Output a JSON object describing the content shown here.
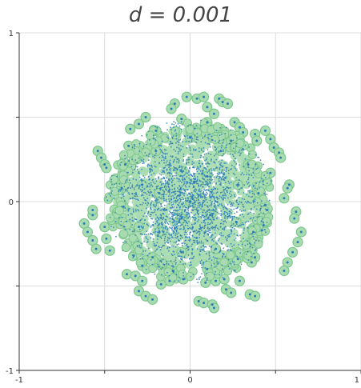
{
  "chart_data": {
    "type": "scatter",
    "title": "d = 0.001",
    "xlabel": "",
    "ylabel": "",
    "xlim": [
      -1,
      1
    ],
    "ylim": [
      -1,
      1
    ],
    "x_ticks": [
      -1,
      -0.5,
      0,
      0.5,
      1
    ],
    "y_ticks": [
      -1,
      -0.5,
      0,
      0.5,
      1
    ],
    "x_tick_labels": [
      "-1",
      "",
      "0",
      "",
      "1"
    ],
    "y_tick_labels": [
      "-1",
      "",
      "0",
      "",
      "1"
    ],
    "grid": true,
    "legend": "none",
    "point_color": "#2b7bba",
    "halo_color": "#a8dcb0",
    "halo_edge_color": "#7cc68e",
    "cloud": {
      "center": [
        0,
        0
      ],
      "radius": 0.5,
      "density": "highest near center"
    },
    "series": [
      {
        "values": [
          [
            -0.54,
            0.3
          ],
          [
            -0.52,
            0.26
          ],
          [
            -0.5,
            0.22
          ],
          [
            -0.49,
            0.2
          ],
          [
            -0.57,
            -0.08
          ],
          [
            -0.57,
            -0.05
          ],
          [
            -0.62,
            -0.13
          ],
          [
            -0.6,
            -0.18
          ],
          [
            -0.57,
            -0.23
          ],
          [
            -0.55,
            -0.28
          ],
          [
            -0.5,
            -0.15
          ],
          [
            -0.49,
            -0.22
          ],
          [
            -0.47,
            -0.29
          ],
          [
            -0.35,
            0.43
          ],
          [
            -0.3,
            0.46
          ],
          [
            -0.26,
            0.5
          ],
          [
            -0.36,
            0.33
          ],
          [
            -0.02,
            0.62
          ],
          [
            0.04,
            0.61
          ],
          [
            0.08,
            0.62
          ],
          [
            0.17,
            0.61
          ],
          [
            0.19,
            0.59
          ],
          [
            0.22,
            0.58
          ],
          [
            -0.09,
            0.58
          ],
          [
            -0.11,
            0.55
          ],
          [
            0.1,
            0.56
          ],
          [
            0.14,
            0.52
          ],
          [
            0.26,
            0.47
          ],
          [
            0.29,
            0.44
          ],
          [
            0.31,
            0.41
          ],
          [
            0.38,
            0.4
          ],
          [
            0.39,
            0.36
          ],
          [
            0.44,
            0.42
          ],
          [
            0.47,
            0.37
          ],
          [
            0.49,
            0.32
          ],
          [
            0.52,
            0.29
          ],
          [
            0.53,
            0.26
          ],
          [
            0.47,
            0.17
          ],
          [
            0.58,
            0.1
          ],
          [
            0.57,
            0.08
          ],
          [
            0.55,
            0.02
          ],
          [
            0.62,
            -0.06
          ],
          [
            0.61,
            -0.1
          ],
          [
            0.65,
            -0.18
          ],
          [
            0.63,
            -0.24
          ],
          [
            0.6,
            -0.3
          ],
          [
            0.57,
            -0.36
          ],
          [
            0.55,
            -0.41
          ],
          [
            0.44,
            -0.02
          ],
          [
            0.45,
            -0.05
          ],
          [
            0.43,
            -0.14
          ],
          [
            0.42,
            -0.17
          ],
          [
            0.38,
            -0.33
          ],
          [
            0.36,
            -0.36
          ],
          [
            -0.37,
            -0.43
          ],
          [
            -0.32,
            -0.44
          ],
          [
            -0.28,
            -0.47
          ],
          [
            -0.3,
            -0.53
          ],
          [
            -0.26,
            -0.56
          ],
          [
            -0.22,
            -0.58
          ],
          [
            -0.17,
            -0.49
          ],
          [
            -0.12,
            -0.47
          ],
          [
            -0.04,
            -0.46
          ],
          [
            0.09,
            -0.48
          ],
          [
            0.15,
            -0.47
          ],
          [
            0.2,
            -0.46
          ],
          [
            0.29,
            -0.47
          ],
          [
            0.21,
            -0.52
          ],
          [
            0.24,
            -0.54
          ],
          [
            0.35,
            -0.55
          ],
          [
            0.38,
            -0.56
          ],
          [
            0.05,
            -0.59
          ],
          [
            0.08,
            -0.6
          ],
          [
            0.13,
            -0.61
          ],
          [
            0.14,
            -0.63
          ],
          [
            -0.38,
            0.22
          ],
          [
            -0.4,
            0.08
          ],
          [
            -0.39,
            -0.03
          ],
          [
            -0.33,
            -0.32
          ],
          [
            -0.28,
            -0.38
          ],
          [
            -0.2,
            0.42
          ],
          [
            -0.05,
            0.49
          ],
          [
            0.1,
            0.47
          ],
          [
            0.24,
            0.36
          ],
          [
            0.34,
            0.22
          ],
          [
            0.4,
            0.05
          ],
          [
            0.37,
            -0.18
          ],
          [
            0.28,
            -0.34
          ],
          [
            0.1,
            -0.4
          ],
          [
            -0.1,
            -0.41
          ],
          [
            -0.22,
            -0.33
          ],
          [
            -0.3,
            -0.15
          ],
          [
            -0.28,
            0.1
          ],
          [
            -0.2,
            0.3
          ],
          [
            0.0,
            0.38
          ],
          [
            0.18,
            0.3
          ],
          [
            0.28,
            0.1
          ],
          [
            0.27,
            -0.12
          ],
          [
            0.15,
            -0.28
          ],
          [
            -0.05,
            -0.3
          ],
          [
            -0.18,
            -0.18
          ],
          [
            -0.18,
            0.05
          ],
          [
            -0.05,
            0.18
          ],
          [
            0.1,
            0.15
          ],
          [
            0.12,
            -0.08
          ],
          [
            -0.05,
            -0.1
          ],
          [
            0.0,
            0.0
          ]
        ]
      }
    ]
  }
}
